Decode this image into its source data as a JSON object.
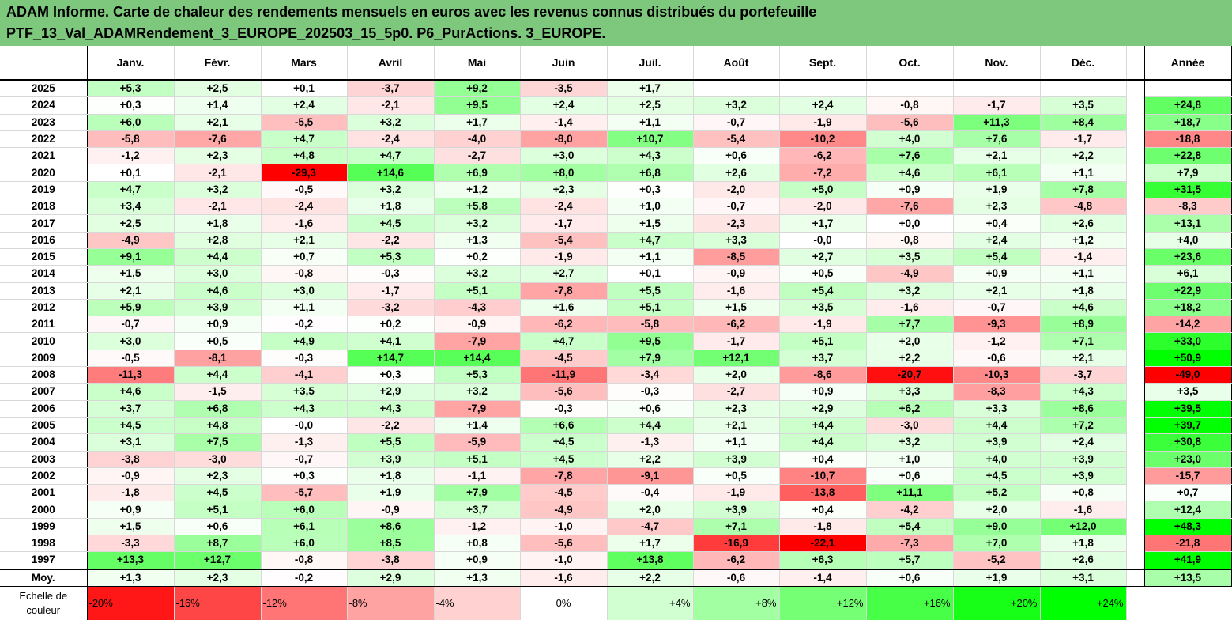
{
  "title": {
    "line1": "ADAM Informe. Carte de chaleur des rendements mensuels en euros avec les revenus connus distribués du portefeuille",
    "line2": "PTF_13_Val_ADAMRendement_3_EUROPE_202503_15_5p0. P6_PurActions. 3_EUROPE."
  },
  "chart_data": {
    "type": "heatmap",
    "title": "ADAM Informe. Carte de chaleur des rendements mensuels en euros avec les revenus connus distribués du portefeuille PTF_13_Val_ADAMRendement_3_EUROPE_202503_15_5p0. P6_PurActions. 3_EUROPE.",
    "months": [
      "Janv.",
      "Févr.",
      "Mars",
      "Avril",
      "Mai",
      "Juin",
      "Juil.",
      "Août",
      "Sept.",
      "Oct.",
      "Nov.",
      "Déc."
    ],
    "annual_label": "Année",
    "rows": [
      {
        "year": "2025",
        "values": [
          "+5,3",
          "+2,5",
          "+0,1",
          "-3,7",
          "+9,2",
          "-3,5",
          "+1,7",
          "",
          "",
          "",
          "",
          ""
        ],
        "annual": ""
      },
      {
        "year": "2024",
        "values": [
          "+0,3",
          "+1,4",
          "+2,4",
          "-2,1",
          "+9,5",
          "+2,4",
          "+2,5",
          "+3,2",
          "+2,4",
          "-0,8",
          "-1,7",
          "+3,5"
        ],
        "annual": "+24,8"
      },
      {
        "year": "2023",
        "values": [
          "+6,0",
          "+2,1",
          "-5,5",
          "+3,2",
          "+1,7",
          "-1,4",
          "+1,1",
          "-0,7",
          "-1,9",
          "-5,6",
          "+11,3",
          "+8,4"
        ],
        "annual": "+18,7"
      },
      {
        "year": "2022",
        "values": [
          "-5,8",
          "-7,6",
          "+4,7",
          "-2,4",
          "-4,0",
          "-8,0",
          "+10,7",
          "-5,4",
          "-10,2",
          "+4,0",
          "+7,6",
          "-1,7"
        ],
        "annual": "-18,8"
      },
      {
        "year": "2021",
        "values": [
          "-1,2",
          "+2,3",
          "+4,8",
          "+4,7",
          "-2,7",
          "+3,0",
          "+4,3",
          "+0,6",
          "-6,2",
          "+7,6",
          "+2,1",
          "+2,2"
        ],
        "annual": "+22,8"
      },
      {
        "year": "2020",
        "values": [
          "+0,1",
          "-2,1",
          "-29,3",
          "+14,6",
          "+6,9",
          "+8,0",
          "+6,8",
          "+2,6",
          "-7,2",
          "+4,6",
          "+6,1",
          "+1,1"
        ],
        "annual": "+7,9"
      },
      {
        "year": "2019",
        "values": [
          "+4,7",
          "+3,2",
          "-0,5",
          "+3,2",
          "+1,2",
          "+2,3",
          "+0,3",
          "-2,0",
          "+5,0",
          "+0,9",
          "+1,9",
          "+7,8"
        ],
        "annual": "+31,5"
      },
      {
        "year": "2018",
        "values": [
          "+3,4",
          "-2,1",
          "-2,4",
          "+1,8",
          "+5,8",
          "-2,4",
          "+1,0",
          "-0,7",
          "-2,0",
          "-7,6",
          "+2,3",
          "-4,8"
        ],
        "annual": "-8,3"
      },
      {
        "year": "2017",
        "values": [
          "+2,5",
          "+1,8",
          "-1,6",
          "+4,5",
          "+3,2",
          "-1,7",
          "+1,5",
          "-2,3",
          "+1,7",
          "+0,0",
          "+0,4",
          "+2,6"
        ],
        "annual": "+13,1"
      },
      {
        "year": "2016",
        "values": [
          "-4,9",
          "+2,8",
          "+2,1",
          "-2,2",
          "+1,3",
          "-5,4",
          "+4,7",
          "+3,3",
          "-0,0",
          "-0,8",
          "+2,4",
          "+1,2"
        ],
        "annual": "+4,0"
      },
      {
        "year": "2015",
        "values": [
          "+9,1",
          "+4,4",
          "+0,7",
          "+5,3",
          "+0,2",
          "-1,9",
          "+1,1",
          "-8,5",
          "+2,7",
          "+3,5",
          "+5,4",
          "-1,4"
        ],
        "annual": "+23,6"
      },
      {
        "year": "2014",
        "values": [
          "+1,5",
          "+3,0",
          "-0,8",
          "-0,3",
          "+3,2",
          "+2,7",
          "+0,1",
          "-0,9",
          "+0,5",
          "-4,9",
          "+0,9",
          "+1,1"
        ],
        "annual": "+6,1"
      },
      {
        "year": "2013",
        "values": [
          "+2,1",
          "+4,6",
          "+3,0",
          "-1,7",
          "+5,1",
          "-7,8",
          "+5,5",
          "-1,6",
          "+5,4",
          "+3,2",
          "+2,1",
          "+1,8"
        ],
        "annual": "+22,9"
      },
      {
        "year": "2012",
        "values": [
          "+5,9",
          "+3,9",
          "+1,1",
          "-3,2",
          "-4,3",
          "+1,6",
          "+5,1",
          "+1,5",
          "+3,5",
          "-1,6",
          "-0,7",
          "+4,6"
        ],
        "annual": "+18,2"
      },
      {
        "year": "2011",
        "values": [
          "-0,7",
          "+0,9",
          "-0,2",
          "+0,2",
          "-0,9",
          "-6,2",
          "-5,8",
          "-6,2",
          "-1,9",
          "+7,7",
          "-9,3",
          "+8,9"
        ],
        "annual": "-14,2"
      },
      {
        "year": "2010",
        "values": [
          "+3,0",
          "+0,5",
          "+4,9",
          "+4,1",
          "-7,9",
          "+4,7",
          "+9,5",
          "-1,7",
          "+5,1",
          "+2,0",
          "-1,2",
          "+7,1"
        ],
        "annual": "+33,0"
      },
      {
        "year": "2009",
        "values": [
          "-0,5",
          "-8,1",
          "-0,3",
          "+14,7",
          "+14,4",
          "-4,5",
          "+7,9",
          "+12,1",
          "+3,7",
          "+2,2",
          "-0,6",
          "+2,1"
        ],
        "annual": "+50,9"
      },
      {
        "year": "2008",
        "values": [
          "-11,3",
          "+4,4",
          "-4,1",
          "+0,3",
          "+5,3",
          "-11,9",
          "-3,4",
          "+2,0",
          "-8,6",
          "-20,7",
          "-10,3",
          "-3,7"
        ],
        "annual": "-49,0"
      },
      {
        "year": "2007",
        "values": [
          "+4,6",
          "-1,5",
          "+3,5",
          "+2,9",
          "+3,2",
          "-5,6",
          "-0,3",
          "-2,7",
          "+0,9",
          "+3,3",
          "-8,3",
          "+4,3"
        ],
        "annual": "+3,5"
      },
      {
        "year": "2006",
        "values": [
          "+3,7",
          "+6,8",
          "+4,3",
          "+4,3",
          "-7,9",
          "-0,3",
          "+0,6",
          "+2,3",
          "+2,9",
          "+6,2",
          "+3,3",
          "+8,6"
        ],
        "annual": "+39,5"
      },
      {
        "year": "2005",
        "values": [
          "+4,5",
          "+4,8",
          "-0,0",
          "-2,2",
          "+1,4",
          "+6,6",
          "+4,4",
          "+2,1",
          "+4,4",
          "-3,0",
          "+4,4",
          "+7,2"
        ],
        "annual": "+39,7"
      },
      {
        "year": "2004",
        "values": [
          "+3,1",
          "+7,5",
          "-1,3",
          "+5,5",
          "-5,9",
          "+4,5",
          "-1,3",
          "+1,1",
          "+4,4",
          "+3,2",
          "+3,9",
          "+2,4"
        ],
        "annual": "+30,8"
      },
      {
        "year": "2003",
        "values": [
          "-3,8",
          "-3,0",
          "-0,7",
          "+3,9",
          "+5,1",
          "+4,5",
          "+2,2",
          "+3,9",
          "+0,4",
          "+1,0",
          "+4,0",
          "+3,9"
        ],
        "annual": "+23,0"
      },
      {
        "year": "2002",
        "values": [
          "-0,9",
          "+2,3",
          "+0,3",
          "+1,8",
          "-1,1",
          "-7,8",
          "-9,1",
          "+0,5",
          "-10,7",
          "+0,6",
          "+4,5",
          "+3,9"
        ],
        "annual": "-15,7"
      },
      {
        "year": "2001",
        "values": [
          "-1,8",
          "+4,5",
          "-5,7",
          "+1,9",
          "+7,9",
          "-4,5",
          "-0,4",
          "-1,9",
          "-13,8",
          "+11,1",
          "+5,2",
          "+0,8"
        ],
        "annual": "+0,7"
      },
      {
        "year": "2000",
        "values": [
          "+0,9",
          "+5,1",
          "+6,0",
          "-0,9",
          "+3,7",
          "-4,9",
          "+2,0",
          "+3,9",
          "+0,4",
          "-4,2",
          "+2,0",
          "-1,6"
        ],
        "annual": "+12,4"
      },
      {
        "year": "1999",
        "values": [
          "+1,5",
          "+0,6",
          "+6,1",
          "+8,6",
          "-1,2",
          "-1,0",
          "-4,7",
          "+7,1",
          "-1,8",
          "+5,4",
          "+9,0",
          "+12,0"
        ],
        "annual": "+48,3"
      },
      {
        "year": "1998",
        "values": [
          "-3,3",
          "+8,7",
          "+6,0",
          "+8,5",
          "+0,8",
          "-5,6",
          "+1,7",
          "-16,9",
          "-22,1",
          "-7,3",
          "+7,0",
          "+1,8"
        ],
        "annual": "-21,8"
      },
      {
        "year": "1997",
        "values": [
          "+13,3",
          "+12,7",
          "-0,8",
          "-3,8",
          "+0,9",
          "-1,0",
          "+13,8",
          "-6,2",
          "+6,3",
          "+5,7",
          "-5,2",
          "+2,6"
        ],
        "annual": "+41,9"
      }
    ],
    "average": {
      "label": "Moy.",
      "values": [
        "+1,3",
        "+2,3",
        "-0,2",
        "+2,9",
        "+1,3",
        "-1,6",
        "+2,2",
        "-0,6",
        "-1,4",
        "+0,6",
        "+1,9",
        "+3,1"
      ],
      "annual": "+13,5"
    },
    "scale": {
      "label_line1": "Echelle de",
      "label_line2": "couleur",
      "steps": [
        {
          "text": "-20%",
          "value": -20
        },
        {
          "text": "-16%",
          "value": -16
        },
        {
          "text": "-12%",
          "value": -12
        },
        {
          "text": "-8%",
          "value": -8
        },
        {
          "text": "-4%",
          "value": -4
        },
        {
          "text": "0%",
          "value": 0
        },
        {
          "text": "+4%",
          "value": 4
        },
        {
          "text": "+8%",
          "value": 8
        },
        {
          "text": "+12%",
          "value": 12
        },
        {
          "text": "+16%",
          "value": 16
        },
        {
          "text": "+20%",
          "value": 20
        },
        {
          "text": "+24%",
          "value": 24
        }
      ]
    },
    "colors": {
      "negative": "#ff0000",
      "neutral": "#ffffff",
      "positive": "#00ff00",
      "title_bar": "#7ec87e"
    }
  }
}
